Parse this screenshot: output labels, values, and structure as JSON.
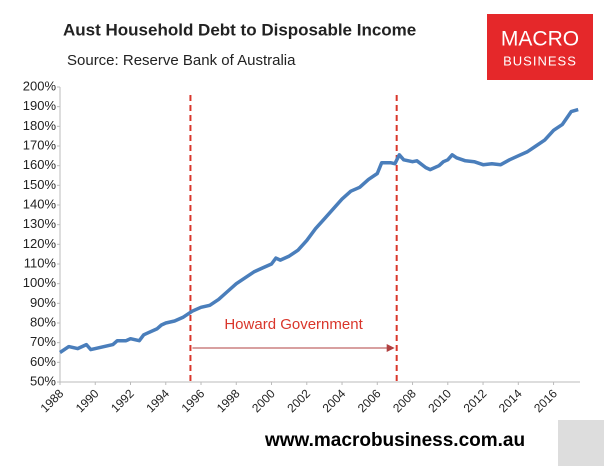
{
  "chart_data": {
    "type": "line",
    "title": "Aust Household Debt to Disposable Income",
    "subtitle": "Source: Reserve Bank of Australia",
    "logo": [
      "MACRO",
      "BUSINESS"
    ],
    "footer": "www.macrobusiness.com.au",
    "annotation": {
      "text": "Howard Government",
      "start": 1995.4,
      "end": 2007.1,
      "color": "#d9362b"
    },
    "color": "#4a7ebb",
    "x": [
      1988,
      1988.5,
      1989,
      1989.5,
      1989.75,
      1990,
      1990.5,
      1991,
      1991.25,
      1991.75,
      1992,
      1992.5,
      1992.75,
      1993,
      1993.5,
      1993.75,
      1994,
      1994.5,
      1995,
      1995.5,
      1996,
      1996.5,
      1997,
      1997.5,
      1998,
      1998.5,
      1999,
      1999.5,
      2000,
      2000.25,
      2000.5,
      2001,
      2001.5,
      2002,
      2002.5,
      2003,
      2003.5,
      2004,
      2004.5,
      2005,
      2005.5,
      2006,
      2006.25,
      2006.75,
      2007,
      2007.25,
      2007.5,
      2008,
      2008.25,
      2008.75,
      2009,
      2009.5,
      2009.75,
      2010,
      2010.25,
      2010.5,
      2011,
      2011.5,
      2012,
      2012.5,
      2013,
      2013.5,
      2014,
      2014.5,
      2015,
      2015.5,
      2016,
      2016.5,
      2017,
      2017.4
    ],
    "values": [
      65,
      68,
      67,
      69,
      66.5,
      67,
      68,
      69,
      71,
      71,
      72,
      71,
      74,
      75,
      77,
      79,
      80,
      81,
      83,
      86,
      88,
      89,
      92,
      96,
      100,
      103,
      106,
      108,
      110,
      113,
      112,
      114,
      117,
      122,
      128,
      133,
      138,
      143,
      147,
      149,
      153,
      156,
      161.5,
      161.5,
      161,
      165.5,
      163,
      162,
      162.5,
      159,
      158,
      160,
      162,
      163,
      165.5,
      164,
      162.5,
      162,
      160.5,
      161,
      160.5,
      163,
      165,
      167,
      170,
      173,
      178,
      181,
      187.5,
      188.5
    ],
    "xlim": [
      1988,
      2017.5
    ],
    "xticks": [
      1988,
      1990,
      1992,
      1994,
      1996,
      1998,
      2000,
      2002,
      2004,
      2006,
      2008,
      2010,
      2012,
      2014,
      2016
    ],
    "ylim": [
      50,
      200
    ],
    "yticks": [
      {
        "value": 50,
        "label": "50%"
      },
      {
        "value": 60,
        "label": "60%"
      },
      {
        "value": 70,
        "label": "70%"
      },
      {
        "value": 80,
        "label": "80%"
      },
      {
        "value": 90,
        "label": "90%"
      },
      {
        "value": 100,
        "label": "100%"
      },
      {
        "value": 110,
        "label": "110%"
      },
      {
        "value": 120,
        "label": "120%"
      },
      {
        "value": 130,
        "label": "130%"
      },
      {
        "value": 140,
        "label": "140%"
      },
      {
        "value": 150,
        "label": "150%"
      },
      {
        "value": 160,
        "label": "160%"
      },
      {
        "value": 170,
        "label": "170%"
      },
      {
        "value": 180,
        "label": "180%"
      },
      {
        "value": 190,
        "label": "190%"
      },
      {
        "value": 200,
        "label": "200%"
      }
    ],
    "grid": false
  }
}
